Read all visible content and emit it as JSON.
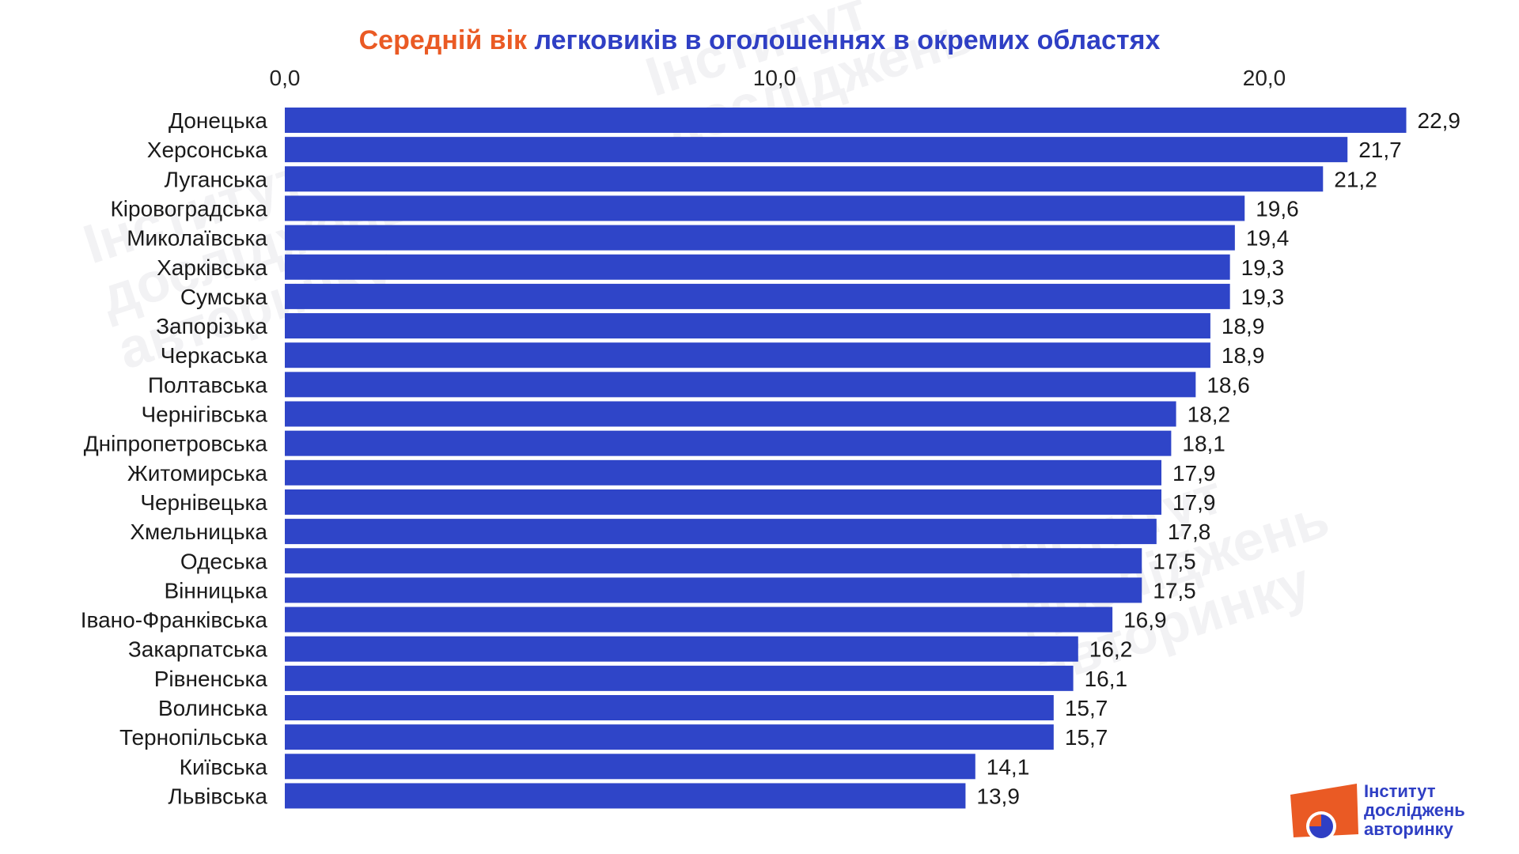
{
  "title": {
    "accent": "Середній вік",
    "main": "легковиків в оголошеннях в окремих областях"
  },
  "logo": {
    "line1": "Інститут",
    "line2": "досліджень",
    "line3": "авторинку"
  },
  "colors": {
    "bar": "#2f45c8",
    "title_accent": "#ea5a24",
    "title_main": "#2f3fc4",
    "logo_orange": "#ea5a24",
    "logo_blue": "#2f3fc4"
  },
  "chart_data": {
    "type": "bar",
    "orientation": "horizontal",
    "title": "Середній вік легковиків в оголошеннях в окремих областях",
    "xlim": [
      0,
      23
    ],
    "x_ticks": [
      "0,0",
      "10,0",
      "20,0"
    ],
    "x_tick_values": [
      0,
      10,
      20
    ],
    "axis_position": "top",
    "grid": false,
    "categories": [
      "Донецька",
      "Херсонська",
      "Луганська",
      "Кіровоградська",
      "Миколаївська",
      "Харківська",
      "Сумська",
      "Запорізька",
      "Черкаська",
      "Полтавська",
      "Чернігівська",
      "Дніпропетровська",
      "Житомирська",
      "Чернівецька",
      "Хмельницька",
      "Одеська",
      "Вінницька",
      "Івано-Франківська",
      "Закарпатська",
      "Рівненська",
      "Волинська",
      "Тернопільська",
      "Київська",
      "Львівська"
    ],
    "values": [
      22.9,
      21.7,
      21.2,
      19.6,
      19.4,
      19.3,
      19.3,
      18.9,
      18.9,
      18.6,
      18.2,
      18.1,
      17.9,
      17.9,
      17.8,
      17.5,
      17.5,
      16.9,
      16.2,
      16.1,
      15.7,
      15.7,
      14.1,
      13.9
    ],
    "value_labels": [
      "22,9",
      "21,7",
      "21,2",
      "19,6",
      "19,4",
      "19,3",
      "19,3",
      "18,9",
      "18,9",
      "18,6",
      "18,2",
      "18,1",
      "17,9",
      "17,9",
      "17,8",
      "17,5",
      "17,5",
      "16,9",
      "16,2",
      "16,1",
      "15,7",
      "15,7",
      "14,1",
      "13,9"
    ]
  }
}
